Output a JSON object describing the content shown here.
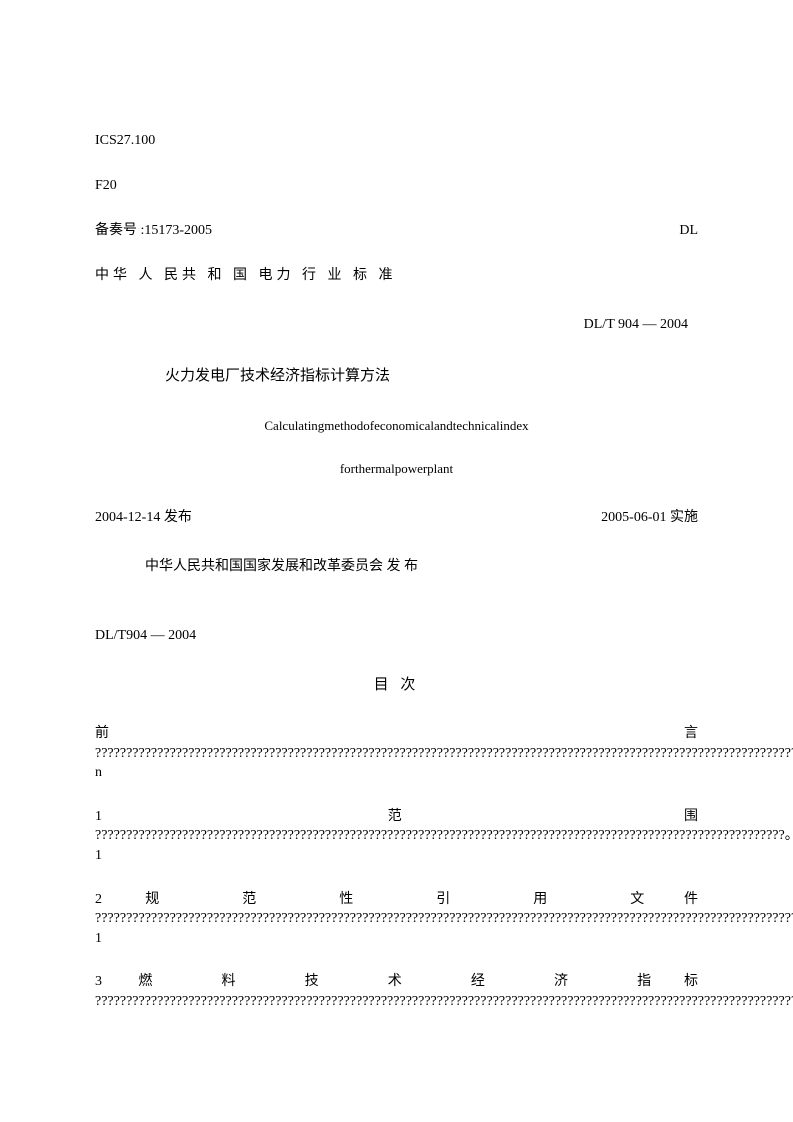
{
  "meta": {
    "ics": "ICS27.100",
    "classification": "F20",
    "record_label": "备奏号 :15173-2005",
    "record_code": "DL"
  },
  "standard": {
    "jurisdiction": "中华 人 民共 和 国 电力 行 业 标 准",
    "code": "DL/T 904 — 2004",
    "title_cn": "火力发电厂技术经济指标计算方法",
    "title_en_1": "Calculatingmethodofeconomicalandtechnicalindex",
    "title_en_2": "forthermalpowerplant",
    "publish_date": "2004-12-14 发布",
    "effect_date": "2005-06-01 实施",
    "issuer": "中华人民共和国国家发展和改革委员会 发 布",
    "ref": "DL/T904 — 2004"
  },
  "toc": {
    "heading": "目 次",
    "preface_label": "前言",
    "preface_fill": " ???????????????????????????????????????????????????????????????????????????????????????????????????????????????????????????????????????????????????????????????????????????????????????????????????????????????????????????????????????????????……n",
    "item1_label": " 1                                                                                                                                              范围",
    "item1_fill": " ???????????????????????????????????????????????????????????????????????????????????????????????????????????????。?????????????????????????????????????????????????????????????????????????????????????????????????????????????????????????????????…… 1",
    "item2_label": "2              规              范              性              引              用              文件",
    "item2_fill": " ???????????????????????????????????????????????????????????????????????????????????????????????????????????????????????????????????????????????????????????????????????。???????????????????????????…… 1",
    "item3_label": "3            燃            料            技            术            经            济            指标",
    "item3_fill": " ?????????????????????????????????????????????????????????????????????????????????????????????????????????????????????????????????????????????????????????????????????????"
  },
  "colors": {
    "background": "#ffffff",
    "text": "#000000"
  }
}
